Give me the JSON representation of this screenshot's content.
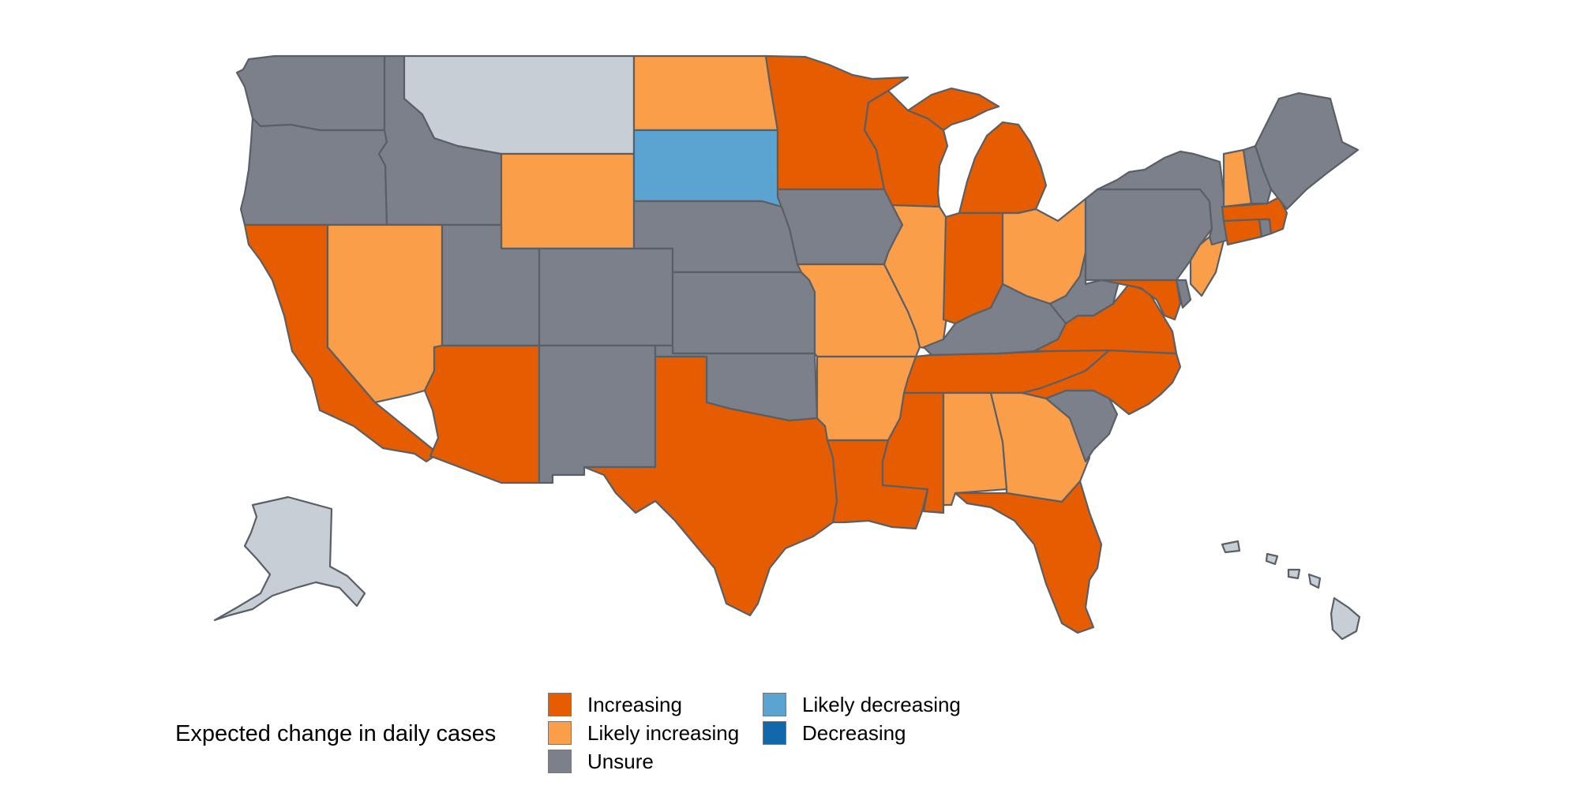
{
  "legend": {
    "title": "Expected change in daily cases",
    "items": [
      {
        "key": "increasing",
        "label": "Increasing",
        "color": "#e65c00"
      },
      {
        "key": "likely_increasing",
        "label": "Likely increasing",
        "color": "#fb9e4a"
      },
      {
        "key": "unsure",
        "label": "Unsure",
        "color": "#7b808a"
      },
      {
        "key": "likely_decreasing",
        "label": "Likely decreasing",
        "color": "#5ba3d1"
      },
      {
        "key": "decreasing",
        "label": "Decreasing",
        "color": "#1169ac"
      }
    ]
  },
  "unlisted_color": "#c8ced6",
  "states": {
    "WA": "unsure",
    "OR": "unsure",
    "CA": "increasing",
    "ID": "unsure",
    "NV": "likely_increasing",
    "MT": "none",
    "WY": "likely_increasing",
    "UT": "unsure",
    "AZ": "increasing",
    "CO": "unsure",
    "NM": "unsure",
    "ND": "likely_increasing",
    "SD": "likely_decreasing",
    "NE": "unsure",
    "KS": "unsure",
    "OK": "unsure",
    "TX": "increasing",
    "MN": "increasing",
    "IA": "unsure",
    "MO": "likely_increasing",
    "AR": "likely_increasing",
    "LA": "increasing",
    "WI": "increasing",
    "IL": "likely_increasing",
    "MI": "increasing",
    "IN": "increasing",
    "OH": "likely_increasing",
    "KY": "unsure",
    "TN": "increasing",
    "MS": "increasing",
    "AL": "likely_increasing",
    "GA": "likely_increasing",
    "FL": "increasing",
    "SC": "unsure",
    "NC": "increasing",
    "VA": "increasing",
    "WV": "unsure",
    "MD": "increasing",
    "DE": "unsure",
    "PA": "unsure",
    "NJ": "likely_increasing",
    "NY": "unsure",
    "CT": "increasing",
    "RI": "unsure",
    "MA": "increasing",
    "VT": "likely_increasing",
    "NH": "unsure",
    "ME": "unsure",
    "AK": "none",
    "HI": "none"
  }
}
